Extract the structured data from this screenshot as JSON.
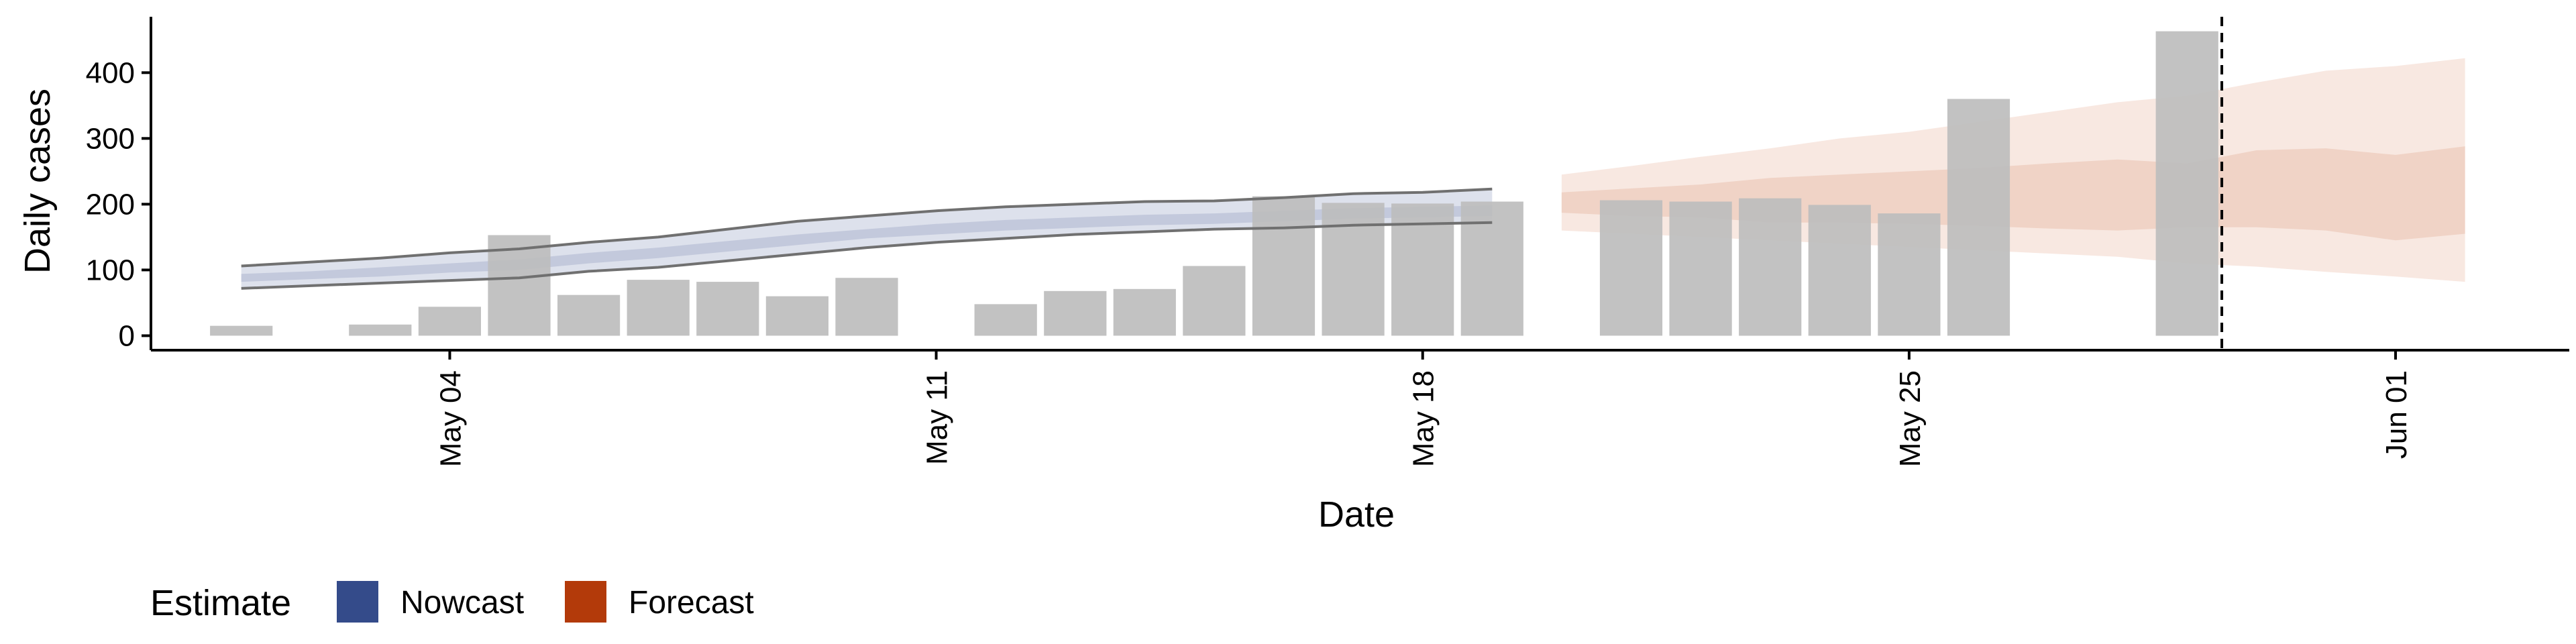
{
  "chart_data": {
    "type": "bar",
    "title": "",
    "xlabel": "Date",
    "ylabel": "Daily cases",
    "ylim": [
      -22,
      485
    ],
    "yticks": [
      "0",
      "100",
      "200",
      "300",
      "400"
    ],
    "xticks": [
      {
        "label": "May 04",
        "day": 4
      },
      {
        "label": "May 11",
        "day": 11
      },
      {
        "label": "May 18",
        "day": 18
      },
      {
        "label": "May 25",
        "day": 25
      },
      {
        "label": "Jun 01",
        "day": 32
      }
    ],
    "x_unit": "day of May 2020 (32 = Jun 01)",
    "xlim": [
      -0.3,
      34.5
    ],
    "grid": false,
    "bars": [
      {
        "day": 1,
        "value": 15
      },
      {
        "day": 3,
        "value": 17
      },
      {
        "day": 4,
        "value": 44
      },
      {
        "day": 5,
        "value": 153
      },
      {
        "day": 6,
        "value": 62
      },
      {
        "day": 7,
        "value": 85
      },
      {
        "day": 8,
        "value": 82
      },
      {
        "day": 9,
        "value": 60
      },
      {
        "day": 10,
        "value": 88
      },
      {
        "day": 12,
        "value": 48
      },
      {
        "day": 13,
        "value": 68
      },
      {
        "day": 14,
        "value": 71
      },
      {
        "day": 15,
        "value": 106
      },
      {
        "day": 16,
        "value": 212
      },
      {
        "day": 17,
        "value": 202
      },
      {
        "day": 18,
        "value": 201
      },
      {
        "day": 19,
        "value": 204
      },
      {
        "day": 21,
        "value": 206
      },
      {
        "day": 22,
        "value": 204
      },
      {
        "day": 23,
        "value": 209
      },
      {
        "day": 24,
        "value": 199
      },
      {
        "day": 25,
        "value": 186
      },
      {
        "day": 26,
        "value": 360
      },
      {
        "day": 29,
        "value": 463
      }
    ],
    "vline_day": 29.5,
    "series": [
      {
        "name": "Nowcast",
        "days": [
          1,
          2,
          3,
          4,
          5,
          6,
          7,
          8,
          9,
          10,
          11,
          12,
          13,
          14,
          15,
          16,
          17,
          18,
          19
        ],
        "outer_lo": [
          72,
          76,
          80,
          84,
          88,
          98,
          104,
          114,
          124,
          134,
          142,
          148,
          154,
          158,
          162,
          164,
          168,
          170,
          172
        ],
        "outer_hi": [
          106,
          112,
          118,
          126,
          132,
          142,
          150,
          162,
          174,
          182,
          190,
          196,
          200,
          204,
          205,
          210,
          216,
          218,
          223
        ],
        "inner_lo": [
          82,
          86,
          90,
          96,
          100,
          110,
          118,
          128,
          138,
          148,
          154,
          160,
          164,
          168,
          170,
          174,
          178,
          180,
          182
        ],
        "inner_hi": [
          94,
          98,
          104,
          110,
          116,
          126,
          134,
          144,
          154,
          162,
          170,
          176,
          180,
          184,
          186,
          190,
          194,
          196,
          198
        ]
      },
      {
        "name": "Forecast",
        "days": [
          20,
          21,
          22,
          23,
          24,
          25,
          26,
          27,
          28,
          29,
          30,
          31,
          32,
          33
        ],
        "outer_lo": [
          160,
          155,
          150,
          145,
          140,
          135,
          130,
          125,
          120,
          110,
          105,
          97,
          90,
          82
        ],
        "outer_hi": [
          245,
          258,
          272,
          285,
          300,
          310,
          325,
          340,
          355,
          365,
          385,
          403,
          410,
          422
        ],
        "inner_lo": [
          187,
          182,
          180,
          172,
          172,
          170,
          167,
          163,
          160,
          165,
          165,
          160,
          145,
          155
        ],
        "inner_hi": [
          218,
          224,
          230,
          240,
          245,
          250,
          255,
          262,
          268,
          262,
          282,
          285,
          275,
          288
        ]
      }
    ],
    "legend": {
      "title": "Estimate",
      "placement": "bottom-left",
      "items": [
        {
          "label": "Nowcast",
          "color": "#344b8a"
        },
        {
          "label": "Forecast",
          "color": "#b33a0a"
        }
      ]
    },
    "colors": {
      "bar": "#bdbdbd",
      "nowcast_outer": "#dde1ec",
      "nowcast_inner": "#c3c9dc",
      "nowcast_line": "#707070",
      "forecast_outer": "#f8e8e1",
      "forecast_inner": "#f0d3c6",
      "axis": "#000000"
    }
  }
}
